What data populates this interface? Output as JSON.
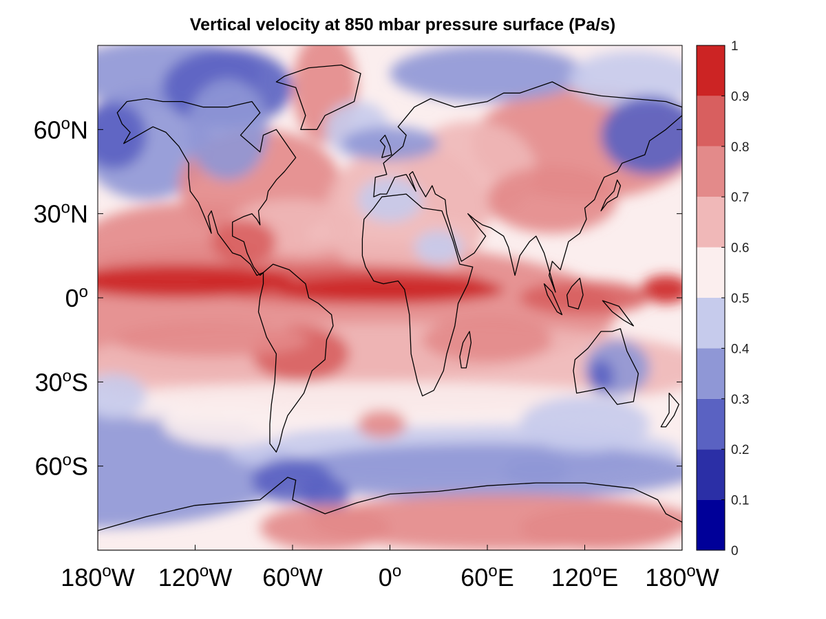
{
  "chart_data": {
    "type": "heatmap",
    "title": "Vertical velocity at 850 mbar pressure surface (Pa/s)",
    "projection": "equirectangular",
    "xlim": [
      -180,
      180
    ],
    "ylim": [
      -90,
      90
    ],
    "x_ticks": [
      {
        "value": -180,
        "num": "180",
        "hemi": "W"
      },
      {
        "value": -120,
        "num": "120",
        "hemi": "W"
      },
      {
        "value": -60,
        "num": "60",
        "hemi": "W"
      },
      {
        "value": 0,
        "num": "0",
        "hemi": ""
      },
      {
        "value": 60,
        "num": "60",
        "hemi": "E"
      },
      {
        "value": 120,
        "num": "120",
        "hemi": "E"
      },
      {
        "value": 180,
        "num": "180",
        "hemi": "W"
      }
    ],
    "y_ticks": [
      {
        "value": 60,
        "num": "60",
        "hemi": "N"
      },
      {
        "value": 30,
        "num": "30",
        "hemi": "N"
      },
      {
        "value": 0,
        "num": "0",
        "hemi": ""
      },
      {
        "value": -30,
        "num": "30",
        "hemi": "S"
      },
      {
        "value": -60,
        "num": "60",
        "hemi": "S"
      }
    ],
    "degree_symbol": "o",
    "colorbar": {
      "range": [
        0,
        1
      ],
      "ticks": [
        "0",
        "0.1",
        "0.2",
        "0.3",
        "0.4",
        "0.5",
        "0.6",
        "0.7",
        "0.8",
        "0.9",
        "1"
      ],
      "colors": [
        "#000099",
        "#2b2fa6",
        "#5a62c2",
        "#8f97d6",
        "#c6cbec",
        "#fbeeee",
        "#f0b8b8",
        "#e38a8a",
        "#d85f5f",
        "#cc2424"
      ]
    },
    "grid": false,
    "coastlines": true
  }
}
